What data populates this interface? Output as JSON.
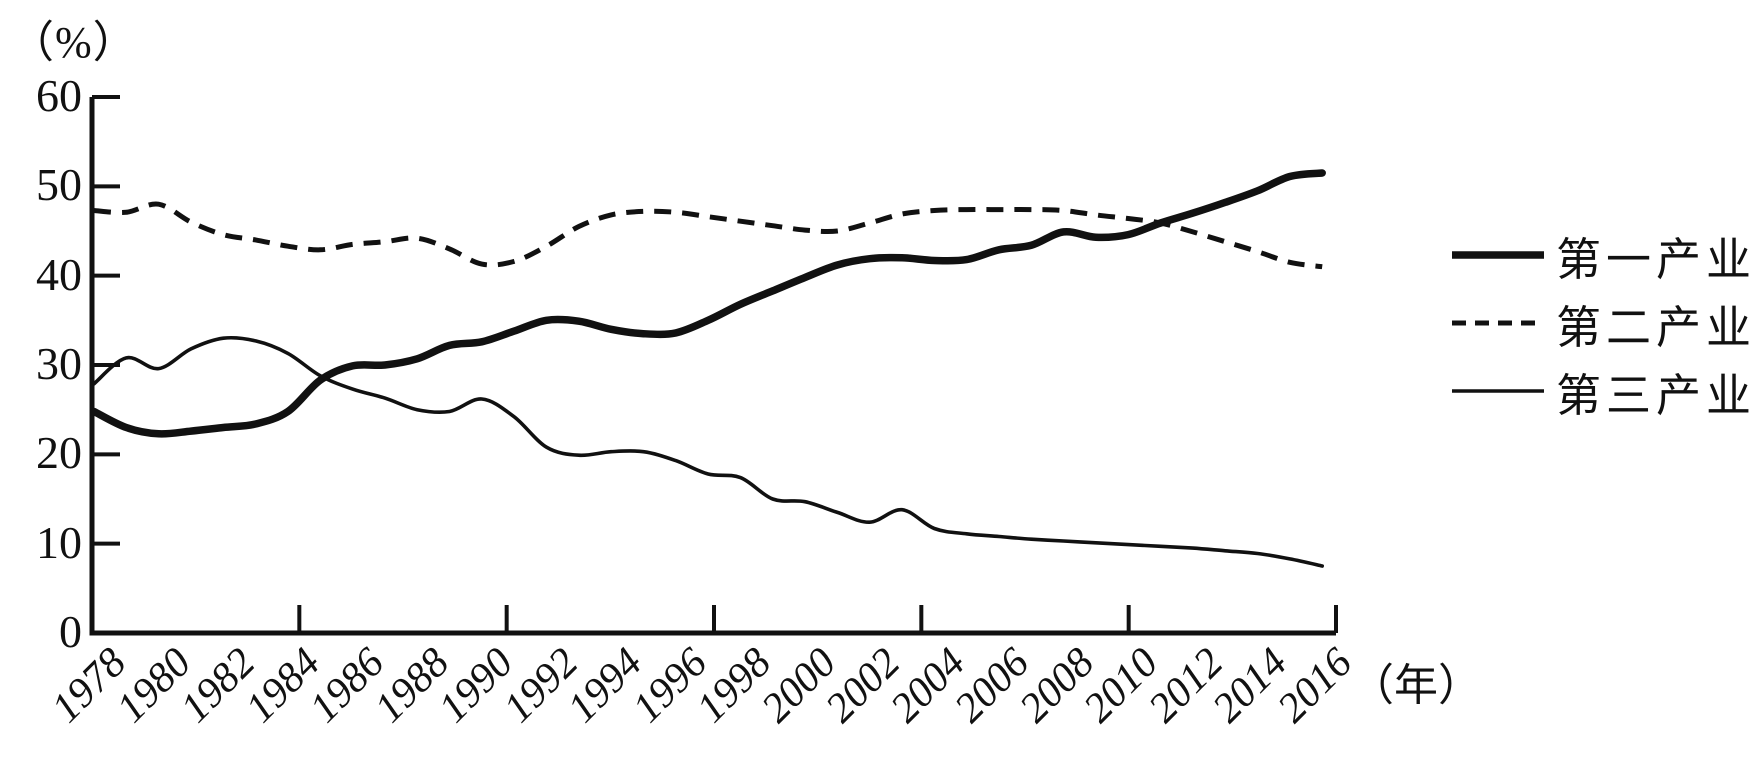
{
  "page": {
    "background_color": "#ffffff",
    "ink_color": "#111111"
  },
  "chart_data": {
    "type": "line",
    "title": "",
    "ylabel": "（%）",
    "xlabel": "（年）",
    "ylim": [
      0,
      60
    ],
    "y_ticks": [
      0,
      10,
      20,
      30,
      40,
      50,
      60
    ],
    "x_tick_labels": [
      "1978",
      "1980",
      "1982",
      "1984",
      "1986",
      "1988",
      "1990",
      "1992",
      "1994",
      "1996",
      "1998",
      "2000",
      "2002",
      "2004",
      "2006",
      "2008",
      "2010",
      "2012",
      "2014",
      "2016"
    ],
    "grid": false,
    "legend_position": "right-outside",
    "x": [
      1978,
      1979,
      1980,
      1981,
      1982,
      1983,
      1984,
      1985,
      1986,
      1987,
      1988,
      1989,
      1990,
      1991,
      1992,
      1993,
      1994,
      1995,
      1996,
      1997,
      1998,
      1999,
      2000,
      2001,
      2002,
      2003,
      2004,
      2005,
      2006,
      2007,
      2008,
      2009,
      2010,
      2011,
      2012,
      2013,
      2014,
      2015,
      2016
    ],
    "series": [
      {
        "name": "第一产业",
        "style": "solid-thick",
        "values": [
          24.8,
          23.0,
          22.3,
          22.6,
          23.0,
          23.4,
          24.8,
          28.3,
          29.9,
          30.0,
          30.7,
          32.2,
          32.6,
          33.8,
          35.0,
          34.9,
          34.0,
          33.5,
          33.6,
          35.0,
          36.8,
          38.3,
          39.8,
          41.2,
          41.9,
          42.0,
          41.7,
          41.8,
          42.9,
          43.4,
          44.9,
          44.3,
          44.6,
          45.9,
          47.0,
          48.2,
          49.5,
          51.1,
          51.5
        ]
      },
      {
        "name": "第二产业",
        "style": "dashed",
        "values": [
          47.3,
          47.1,
          48.0,
          46.0,
          44.6,
          44.0,
          43.3,
          42.9,
          43.5,
          43.8,
          44.2,
          43.0,
          41.3,
          41.6,
          43.3,
          45.5,
          46.8,
          47.2,
          47.1,
          46.6,
          46.1,
          45.6,
          45.1,
          45.0,
          45.9,
          46.9,
          47.3,
          47.4,
          47.4,
          47.4,
          47.3,
          46.8,
          46.4,
          45.9,
          44.9,
          43.8,
          42.7,
          41.5,
          41.0
        ]
      },
      {
        "name": "第三产业",
        "style": "solid-thin",
        "values": [
          27.9,
          30.8,
          29.6,
          31.8,
          33.0,
          32.7,
          31.3,
          28.8,
          27.3,
          26.3,
          25.0,
          24.8,
          26.2,
          24.2,
          20.8,
          19.9,
          20.3,
          20.3,
          19.3,
          17.8,
          17.4,
          15.0,
          14.7,
          13.5,
          12.4,
          13.8,
          11.7,
          11.1,
          10.8,
          10.5,
          10.3,
          10.1,
          9.9,
          9.7,
          9.5,
          9.2,
          8.9,
          8.3,
          7.5
        ]
      }
    ]
  }
}
